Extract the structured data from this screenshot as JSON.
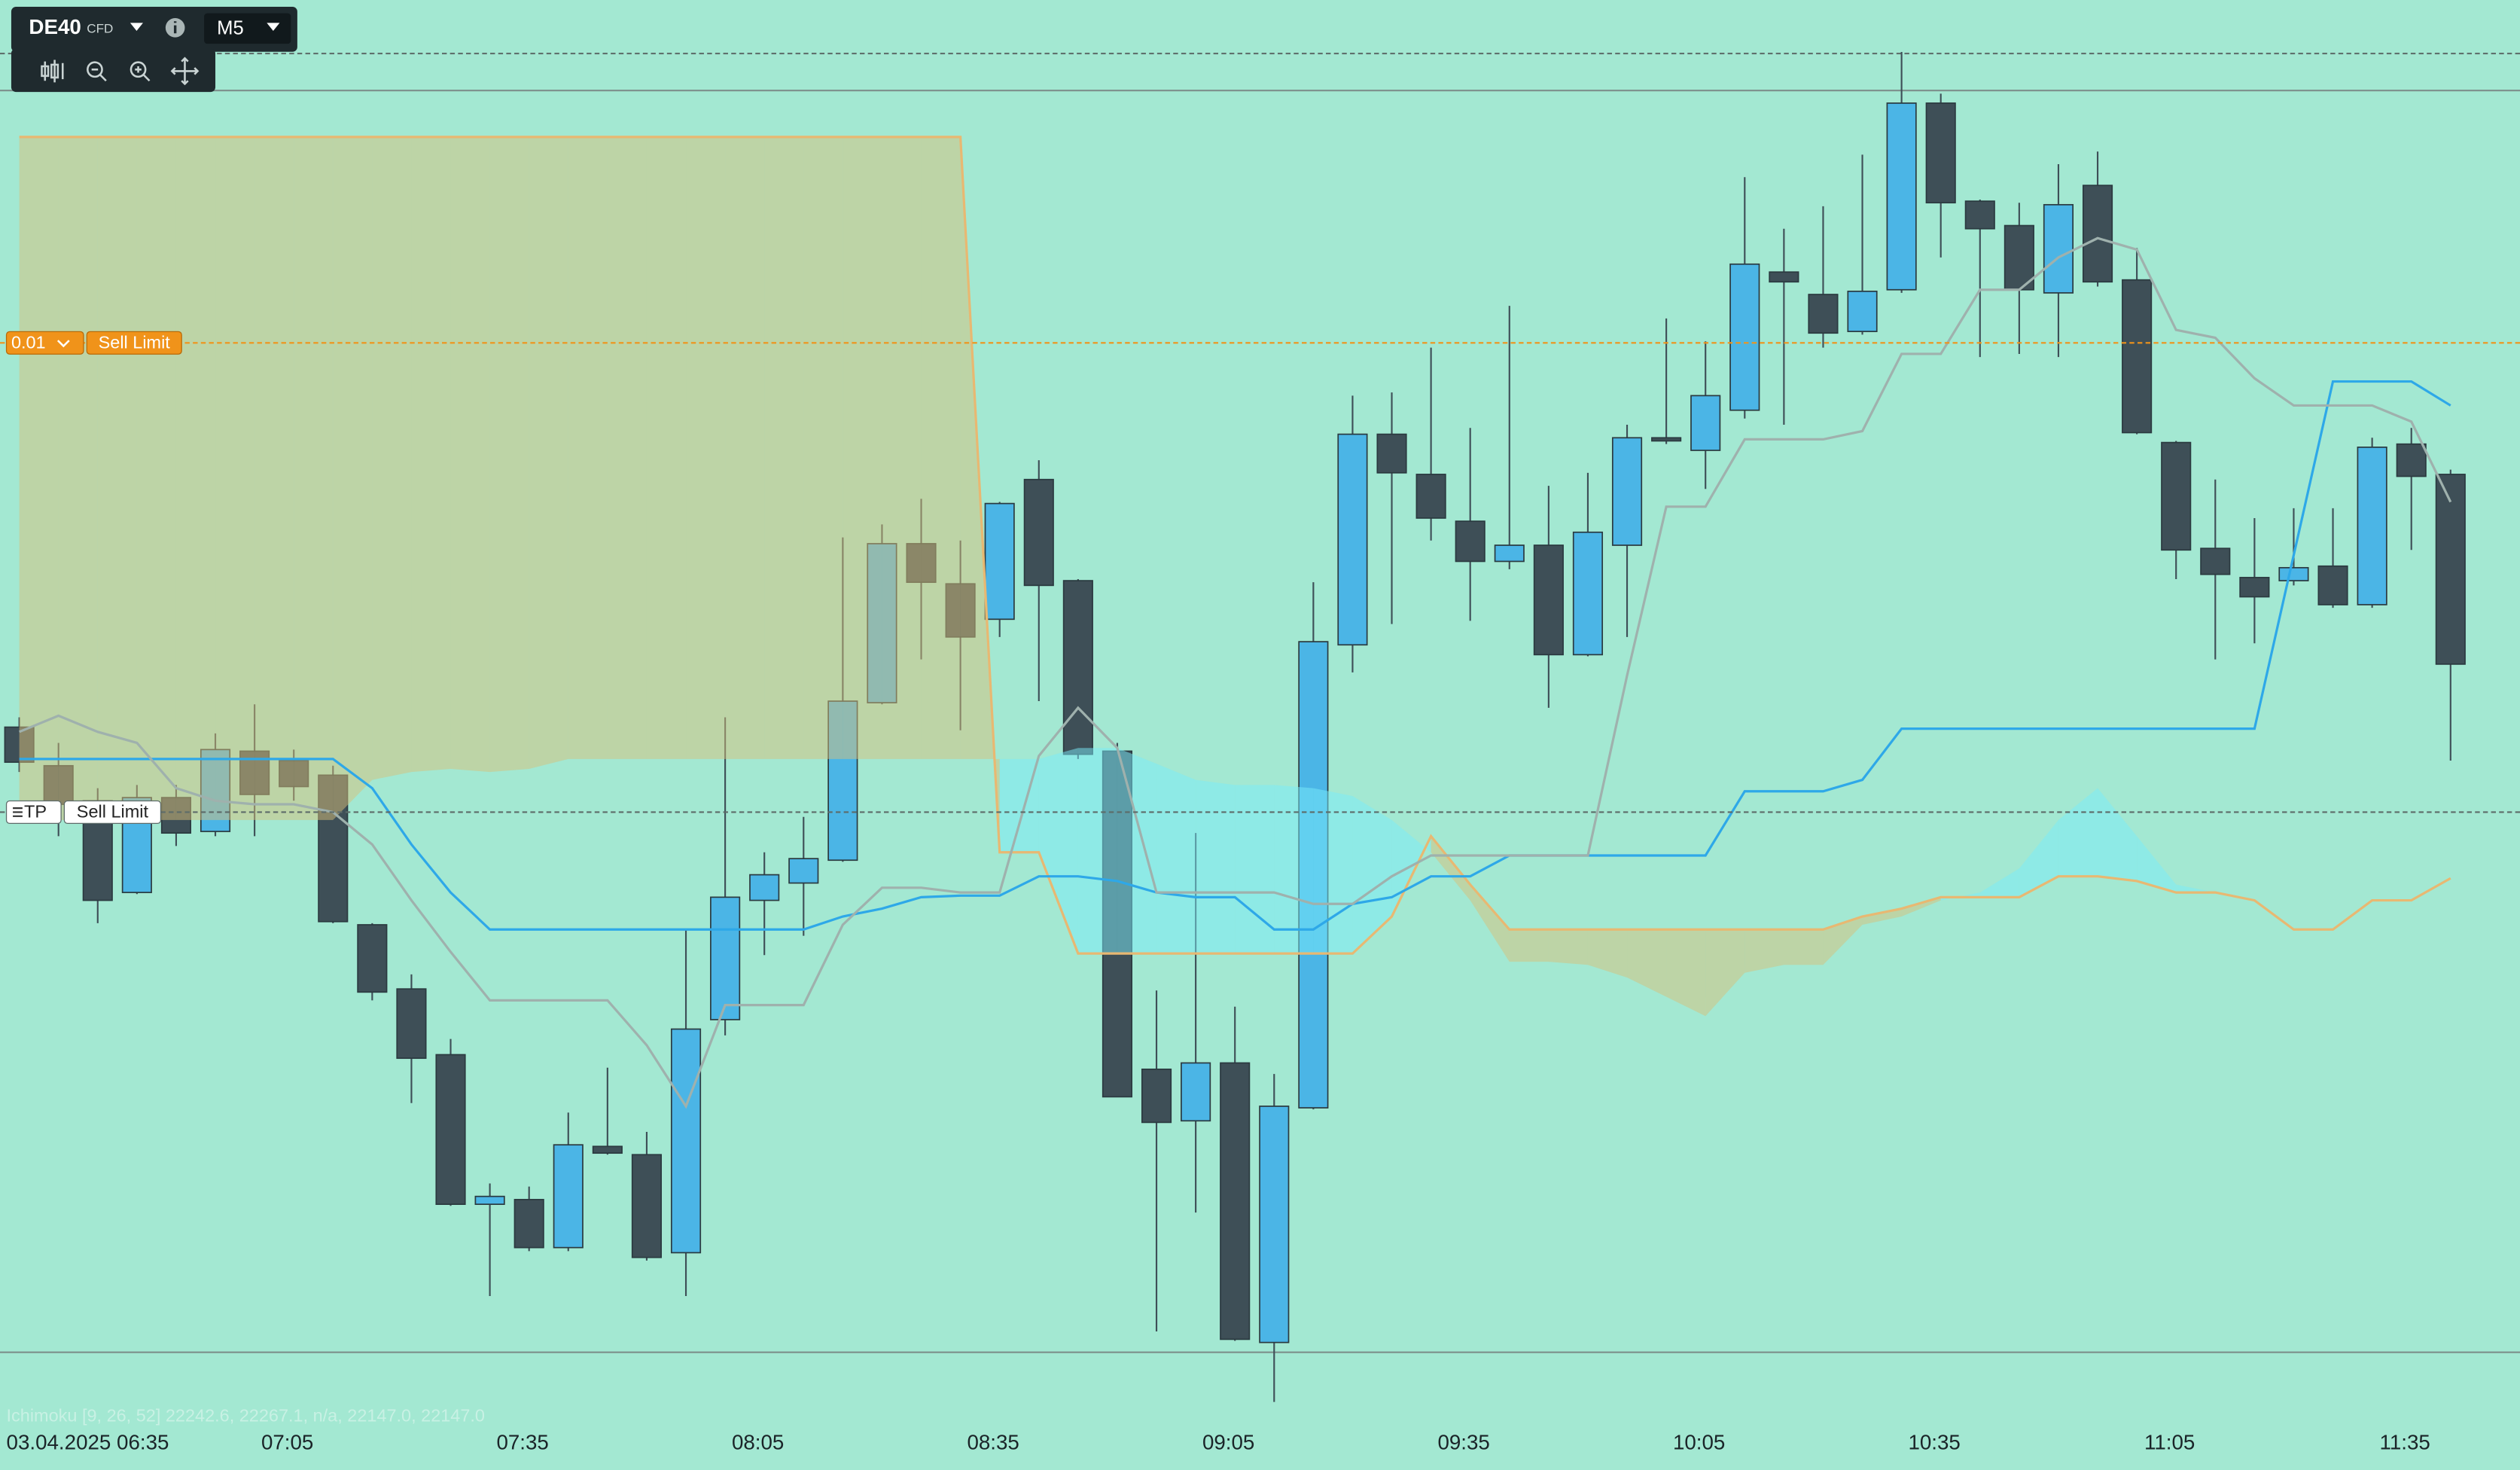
{
  "header": {
    "symbol": "DE40",
    "market": "CFD",
    "timeframe": "M5"
  },
  "orders": [
    {
      "value": 22283.0,
      "tag": "0.01",
      "label": "Sell Limit",
      "color": "#f0931a",
      "label_background": "#f0931a"
    },
    {
      "value": 22163.8,
      "tag": "TP",
      "label": "Sell Limit",
      "color": "#5d6b69",
      "label_background": "#ffffff"
    }
  ],
  "status": "Ichimoku [9, 26, 52] 22242.6, 22267.1, n/a, 22147.0, 22147.0",
  "chart_data": {
    "type": "candlestick",
    "categories": [
      null,
      "03.04.2025 06:35",
      null,
      null,
      null,
      null,
      null,
      "07:05",
      null,
      null,
      null,
      null,
      null,
      "07:35",
      null,
      null,
      null,
      null,
      null,
      "08:05",
      null,
      null,
      null,
      null,
      null,
      "08:35",
      null,
      null,
      null,
      null,
      null,
      "09:05",
      null,
      null,
      null,
      null,
      null,
      "09:35",
      null,
      null,
      null,
      null,
      null,
      "10:05",
      null,
      null,
      null,
      null,
      null,
      "10:35",
      null,
      null,
      null,
      null,
      null,
      "11:05",
      null,
      null,
      null,
      null,
      null,
      "11:35",
      null
    ],
    "open": [
      22185.4,
      22175.6,
      22166.7,
      22143.4,
      22167.5,
      22158.9,
      22179.3,
      22176.9,
      22173.2,
      22135.2,
      22118.9,
      22102.2,
      22064.2,
      22065.4,
      22053.2,
      22078.9,
      22076.8,
      22051.9,
      22111.1,
      22141.4,
      22145.8,
      22151.6,
      22191.6,
      22232.0,
      22221.8,
      22212.8,
      22248.3,
      22222.6,
      22179.3,
      22098.5,
      22085.4,
      22100.1,
      22029.1,
      22088.7,
      22206.3,
      22259.8,
      22249.6,
      22237.7,
      22227.5,
      22231.6,
      22203.8,
      22231.6,
      22258.9,
      22255.7,
      22265.9,
      22301.0,
      22295.3,
      22285.9,
      22296.5,
      22343.9,
      22319.0,
      22312.8,
      22295.7,
      22323.0,
      22299.0,
      22257.7,
      22230.8,
      22223.4,
      22222.6,
      22226.3,
      22216.5,
      22257.3,
      22249.6
    ],
    "high": [
      22187.9,
      22181.4,
      22169.9,
      22170.7,
      22170.7,
      22183.8,
      22191.2,
      22179.7,
      22175.6,
      22135.6,
      22122.6,
      22106.2,
      22069.5,
      22068.7,
      22087.5,
      22098.9,
      22082.6,
      22134.0,
      22187.9,
      22153.6,
      22162.6,
      22233.6,
      22236.9,
      22243.4,
      22232.8,
      22242.6,
      22253.2,
      22223.0,
      22181.4,
      22118.5,
      22158.5,
      22114.4,
      22097.3,
      22222.2,
      22269.6,
      22270.4,
      22281.8,
      22261.4,
      22292.4,
      22246.7,
      22250.0,
      22262.2,
      22289.2,
      22283.4,
      22325.1,
      22312.0,
      22317.7,
      22330.8,
      22356.9,
      22346.3,
      22319.4,
      22318.6,
      22328.4,
      22331.6,
      22307.1,
      22258.1,
      22248.3,
      22238.5,
      22241.0,
      22241.0,
      22258.9,
      22261.4,
      22250.8
    ],
    "low": [
      22174.0,
      22157.7,
      22135.6,
      22143.0,
      22155.2,
      22157.7,
      22157.7,
      22166.7,
      22135.6,
      22116.0,
      22089.9,
      22063.8,
      22040.9,
      22052.3,
      22052.3,
      22076.8,
      22049.9,
      22040.9,
      22107.1,
      22127.5,
      22132.4,
      22151.2,
      22191.2,
      22202.6,
      22184.6,
      22208.3,
      22192.0,
      22177.3,
      22091.5,
      22031.9,
      22062.1,
      22029.5,
      22014.0,
      22088.3,
      22199.3,
      22211.6,
      22232.8,
      22212.4,
      22225.5,
      22190.3,
      22203.4,
      22208.3,
      22257.3,
      22245.9,
      22263.8,
      22262.2,
      22281.8,
      22285.1,
      22295.7,
      22304.7,
      22279.4,
      22280.2,
      22279.4,
      22297.3,
      22259.8,
      22223.0,
      22202.6,
      22206.7,
      22221.4,
      22215.7,
      22215.7,
      22230.4,
      22176.9
    ],
    "close": [
      22176.5,
      22165.8,
      22141.4,
      22167.5,
      22158.5,
      22179.7,
      22168.3,
      22170.3,
      22136.0,
      22118.1,
      22101.3,
      22064.2,
      22066.2,
      22053.2,
      22079.3,
      22077.2,
      22050.7,
      22108.7,
      22142.2,
      22147.9,
      22152.0,
      22192.0,
      22232.0,
      22222.2,
      22208.3,
      22242.2,
      22221.4,
      22178.5,
      22091.5,
      22085.0,
      22100.1,
      22029.9,
      22089.1,
      22207.1,
      22259.8,
      22250.0,
      22238.5,
      22227.5,
      22231.6,
      22203.8,
      22234.9,
      22258.9,
      22258.1,
      22269.6,
      22303.0,
      22298.5,
      22285.5,
      22296.1,
      22343.9,
      22318.6,
      22312.0,
      22296.5,
      22318.1,
      22298.5,
      22260.2,
      22230.4,
      22224.2,
      22218.5,
      22225.9,
      22216.5,
      22256.5,
      22249.1,
      22201.4
    ],
    "up_color": "#4bb5e6",
    "down_color": "#3e4f57",
    "ylim": [
      21996.8,
      22370.0
    ],
    "lines": [
      {
        "color": "#2ea8e8",
        "values": [
          22177.3,
          22177.3,
          22177.3,
          22177.3,
          22177.3,
          22177.3,
          22177.3,
          22177.3,
          22177.3,
          22169.9,
          22155.6,
          22143.4,
          22134.0,
          22134.0,
          22134.0,
          22134.0,
          22134.0,
          22134.0,
          22134.0,
          22134.0,
          22134.0,
          22137.3,
          22139.3,
          22142.2,
          22142.6,
          22142.6,
          22147.5,
          22147.5,
          22146.3,
          22143.4,
          22142.2,
          22142.2,
          22134.0,
          22134.0,
          22140.5,
          22142.2,
          22147.5,
          22147.5,
          22152.8,
          22152.8,
          22152.8,
          22152.8,
          22152.8,
          22152.8,
          22169.1,
          22169.1,
          22169.1,
          22172.0,
          22185.0,
          22185.0,
          22185.0,
          22185.0,
          22185.0,
          22185.0,
          22185.0,
          22185.0,
          22185.0,
          22185.0,
          22229.1,
          22273.2,
          22273.2,
          22273.2,
          22267.1
        ]
      },
      {
        "color": "#9fb1ad",
        "values": [
          22184.2,
          22188.3,
          22184.2,
          22181.4,
          22169.9,
          22166.7,
          22165.8,
          22165.8,
          22163.8,
          22155.6,
          22141.4,
          22128.3,
          22116.0,
          22116.0,
          22116.0,
          22116.0,
          22104.6,
          22089.1,
          22114.8,
          22114.8,
          22114.8,
          22135.2,
          22144.6,
          22144.6,
          22143.4,
          22143.4,
          22178.1,
          22190.3,
          22180.1,
          22143.4,
          22143.4,
          22143.4,
          22143.4,
          22140.5,
          22140.5,
          22147.5,
          22152.8,
          22152.8,
          22152.8,
          22152.8,
          22152.8,
          22198.5,
          22241.4,
          22241.4,
          22258.5,
          22258.5,
          22258.5,
          22260.6,
          22280.2,
          22280.2,
          22296.5,
          22296.5,
          22304.7,
          22309.6,
          22306.7,
          22286.3,
          22284.3,
          22274.0,
          22267.1,
          22267.1,
          22267.1,
          22263.0,
          22242.6
        ]
      }
    ],
    "cloud": {
      "up_color": "#79ecfa",
      "down_color": "#d7c07a",
      "b_color": "#e8b872",
      "a": [
        22161.8,
        22161.8,
        22161.8,
        22161.8,
        22161.8,
        22161.8,
        22161.8,
        22161.8,
        22161.8,
        22172.0,
        22174.0,
        22174.8,
        22174.0,
        22174.8,
        22177.3,
        22177.3,
        22177.3,
        22177.3,
        22177.3,
        22177.3,
        22177.3,
        22177.3,
        22177.3,
        22177.3,
        22177.3,
        22177.3,
        22177.3,
        22180.1,
        22180.1,
        22176.1,
        22172.0,
        22170.7,
        22170.7,
        22169.9,
        22167.9,
        22161.8,
        22153.6,
        22141.4,
        22125.8,
        22125.8,
        22125.0,
        22121.8,
        22116.9,
        22112.0,
        22123.0,
        22125.0,
        22125.0,
        22135.2,
        22137.3,
        22141.4,
        22143.4,
        22149.5,
        22161.8,
        22169.9,
        22157.7,
        22145.4,
        22143.4,
        22141.4,
        22134.0,
        22134.0,
        22141.4,
        22141.4,
        22147.0
      ],
      "b": [
        22335.3,
        22335.3,
        22335.3,
        22335.3,
        22335.3,
        22335.3,
        22335.3,
        22335.3,
        22335.3,
        22335.3,
        22335.3,
        22335.3,
        22335.3,
        22335.3,
        22335.3,
        22335.3,
        22335.3,
        22335.3,
        22335.3,
        22335.3,
        22335.3,
        22335.3,
        22335.3,
        22335.3,
        22335.3,
        22153.6,
        22153.6,
        22127.9,
        22127.9,
        22127.9,
        22127.9,
        22127.9,
        22127.9,
        22127.9,
        22127.9,
        22137.3,
        22157.7,
        22145.4,
        22134.0,
        22134.0,
        22134.0,
        22134.0,
        22134.0,
        22134.0,
        22134.0,
        22134.0,
        22134.0,
        22137.3,
        22139.3,
        22142.2,
        22142.2,
        22142.2,
        22147.5,
        22147.5,
        22146.3,
        22143.4,
        22143.4,
        22141.4,
        22134.0,
        22134.0,
        22141.4,
        22141.4,
        22147.0
      ]
    },
    "levels": [
      {
        "value": 22356.5,
        "dashed": true
      },
      {
        "value": 22347.1,
        "dashed": false
      },
      {
        "value": 22026.6,
        "dashed": false
      }
    ]
  }
}
